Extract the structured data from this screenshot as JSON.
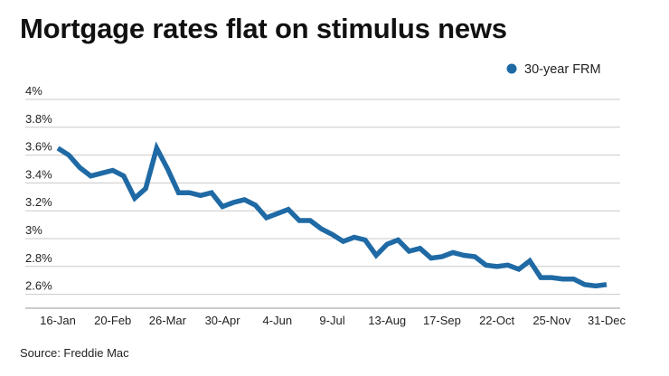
{
  "chart_data": {
    "type": "line",
    "title": "Mortgage rates flat on stimulus news",
    "source": "Source: Freddie Mac",
    "legend_position": "top-right",
    "grid": true,
    "ylim": [
      2.5,
      4.0
    ],
    "y_ticks": [
      {
        "value": 4.0,
        "label": "4%"
      },
      {
        "value": 3.8,
        "label": "3.8%"
      },
      {
        "value": 3.6,
        "label": "3.6%"
      },
      {
        "value": 3.4,
        "label": "3.4%"
      },
      {
        "value": 3.2,
        "label": "3.2%"
      },
      {
        "value": 3.0,
        "label": "3%"
      },
      {
        "value": 2.8,
        "label": "2.8%"
      },
      {
        "value": 2.6,
        "label": "2.6%"
      }
    ],
    "x_ticks": [
      {
        "index": 0,
        "label": "16-Jan"
      },
      {
        "index": 5,
        "label": "20-Feb"
      },
      {
        "index": 10,
        "label": "26-Mar"
      },
      {
        "index": 15,
        "label": "30-Apr"
      },
      {
        "index": 20,
        "label": "4-Jun"
      },
      {
        "index": 25,
        "label": "9-Jul"
      },
      {
        "index": 30,
        "label": "13-Aug"
      },
      {
        "index": 35,
        "label": "17-Sep"
      },
      {
        "index": 40,
        "label": "22-Oct"
      },
      {
        "index": 45,
        "label": "25-Nov"
      },
      {
        "index": 50,
        "label": "31-Dec"
      }
    ],
    "series": [
      {
        "name": "30-year FRM",
        "color": "#1f6aa5",
        "values": [
          3.65,
          3.6,
          3.51,
          3.45,
          3.47,
          3.49,
          3.45,
          3.29,
          3.36,
          3.65,
          3.5,
          3.33,
          3.33,
          3.31,
          3.33,
          3.23,
          3.26,
          3.28,
          3.24,
          3.15,
          3.18,
          3.21,
          3.13,
          3.13,
          3.07,
          3.03,
          2.98,
          3.01,
          2.99,
          2.88,
          2.96,
          2.99,
          2.91,
          2.93,
          2.86,
          2.87,
          2.9,
          2.88,
          2.87,
          2.81,
          2.8,
          2.81,
          2.78,
          2.84,
          2.72,
          2.72,
          2.71,
          2.71,
          2.67,
          2.66,
          2.67
        ]
      }
    ]
  }
}
